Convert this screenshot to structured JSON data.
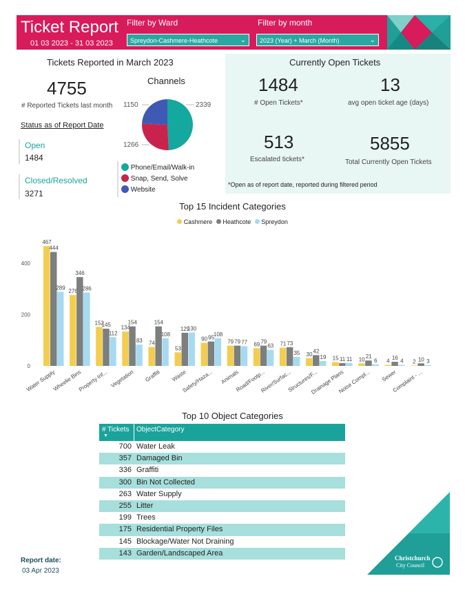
{
  "header": {
    "title": "Ticket Report",
    "date_range": "01 03 2023 - 31 03 2023",
    "ward_label": "Filter by Ward",
    "ward_value": "Spreydon-Cashmere-Heathcote",
    "month_label": "Filter by month",
    "month_value": "2023 (Year) + March (Month)"
  },
  "reported": {
    "heading": "Tickets Reported in March 2023",
    "count": "4755",
    "count_label": "# Reported Tickets last month",
    "status_heading": "Status as of Report Date",
    "open_label": "Open",
    "open_value": "1484",
    "closed_label": "Closed/Resolved",
    "closed_value": "3271"
  },
  "channels": {
    "title": "Channels",
    "slices": [
      {
        "label": "Phone/Email/Walk-in",
        "value": 2339,
        "color": "#14a89f"
      },
      {
        "label": "Snap, Send, Solve",
        "value": 1266,
        "color": "#c8234f"
      },
      {
        "label": "Website",
        "value": 1150,
        "color": "#3f59b4"
      }
    ],
    "value_labels": [
      "2339",
      "1266",
      "1150"
    ]
  },
  "open_tickets": {
    "heading": "Currently Open Tickets",
    "open_count": "1484",
    "open_label": "# Open Tickets*",
    "avg_age": "13",
    "avg_age_label": "avg open ticket age (days)",
    "escalated": "513",
    "escalated_label": "Escalated tickets*",
    "total_open": "5855",
    "total_open_label": "Total Currently Open Tickets",
    "footnote": "*Open as of report date, reported during filtered period"
  },
  "chart_data": {
    "type": "bar",
    "title": "Top 15 Incident Categories",
    "categories": [
      "Water Supply",
      "Wheelie Bins",
      "Property Inf...",
      "Vegetation",
      "Graffiti",
      "Waste",
      "Safety/Haza...",
      "Animals",
      "Road/Footp...",
      "River/Surfac...",
      "Structures/F...",
      "Drainage Plans",
      "Noise Compl...",
      "Sewer",
      "Complaint - ..."
    ],
    "series": [
      {
        "name": "Cashmere",
        "color": "#f2cd4f",
        "values": [
          467,
          276,
          152,
          134,
          74,
          53,
          90,
          79,
          69,
          71,
          30,
          15,
          10,
          4,
          2
        ]
      },
      {
        "name": "Heathcote",
        "color": "#7b7f7e",
        "values": [
          444,
          346,
          145,
          154,
          154,
          129,
          95,
          79,
          79,
          73,
          42,
          11,
          21,
          16,
          10
        ]
      },
      {
        "name": "Spreydon",
        "color": "#a7daf0",
        "values": [
          289,
          286,
          112,
          83,
          108,
          130,
          108,
          77,
          63,
          35,
          19,
          11,
          6,
          4,
          3
        ]
      }
    ],
    "yticks": [
      0,
      200,
      400
    ],
    "ylim": [
      0,
      500
    ],
    "legend": "top",
    "grid": false
  },
  "objects_table": {
    "title": "Top 10 Object Categories",
    "col_tickets": "# Tickets",
    "col_category": "ObjectCategory",
    "rows": [
      {
        "tickets": "700",
        "category": "Water Leak"
      },
      {
        "tickets": "357",
        "category": "Damaged Bin"
      },
      {
        "tickets": "336",
        "category": "Graffiti"
      },
      {
        "tickets": "300",
        "category": "Bin Not Collected"
      },
      {
        "tickets": "263",
        "category": "Water Supply"
      },
      {
        "tickets": "255",
        "category": "Litter"
      },
      {
        "tickets": "199",
        "category": "Trees"
      },
      {
        "tickets": "175",
        "category": "Residential Property Files"
      },
      {
        "tickets": "145",
        "category": "Blockage/Water Not Draining"
      },
      {
        "tickets": "143",
        "category": "Garden/Landscaped Area"
      }
    ]
  },
  "footer": {
    "report_date_label": "Report date:",
    "report_date": "03 Apr 2023",
    "logo_line1": "Christchurch",
    "logo_line2": "City Council"
  }
}
